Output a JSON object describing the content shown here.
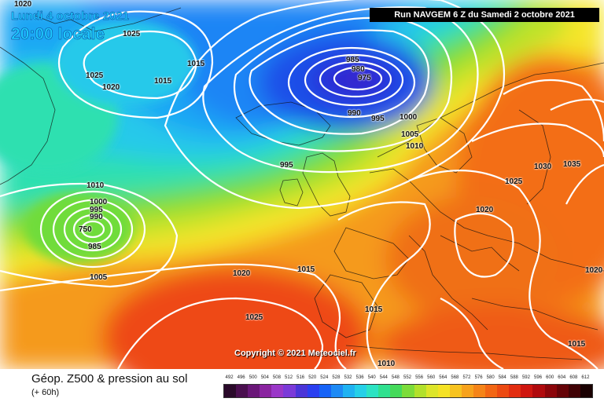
{
  "header": {
    "date": "Lundi 4 octobre 2021",
    "local_time": "20:00 locale",
    "run": "Run NAVGEM 6 Z du Samedi 2 octobre 2021"
  },
  "copyright": "Copyright © 2021 Meteociel.fr",
  "footer": {
    "title": "Géop. Z500 & pression au sol",
    "lead": "(+ 60h)"
  },
  "isobar_labels": [
    "1020",
    "1025",
    "1025",
    "1020",
    "1015",
    "1015",
    "985",
    "980",
    "975",
    "990",
    "995",
    "1000",
    "1005",
    "1010",
    "995",
    "1010",
    "1000",
    "995",
    "990",
    "985",
    "1005",
    "1020",
    "1015",
    "1025",
    "1015",
    "1010",
    "1025",
    "1020",
    "1030",
    "1035",
    "1020",
    "1015",
    "750"
  ],
  "scale": {
    "ticks": [
      "492",
      "496",
      "500",
      "504",
      "508",
      "512",
      "516",
      "520",
      "524",
      "528",
      "532",
      "536",
      "540",
      "544",
      "548",
      "552",
      "556",
      "560",
      "564",
      "568",
      "572",
      "576",
      "580",
      "584",
      "588",
      "592",
      "596",
      "600",
      "604",
      "608",
      "612"
    ],
    "colors": [
      "#2a0a2a",
      "#4a0f4f",
      "#6a1778",
      "#8a24a0",
      "#9a37c8",
      "#7b3ad8",
      "#4a35d8",
      "#2a3ff0",
      "#1663f7",
      "#1d8af5",
      "#1fb2f2",
      "#25d0e8",
      "#2ce3c3",
      "#30e08f",
      "#45da5a",
      "#7cdc3a",
      "#b2e12c",
      "#dde52a",
      "#f5e225",
      "#f7c320",
      "#f7a21c",
      "#f58418",
      "#f26614",
      "#ec4a12",
      "#e22d10",
      "#cf160f",
      "#b00a0d",
      "#8b050a",
      "#650307",
      "#400205",
      "#1a0102"
    ]
  }
}
